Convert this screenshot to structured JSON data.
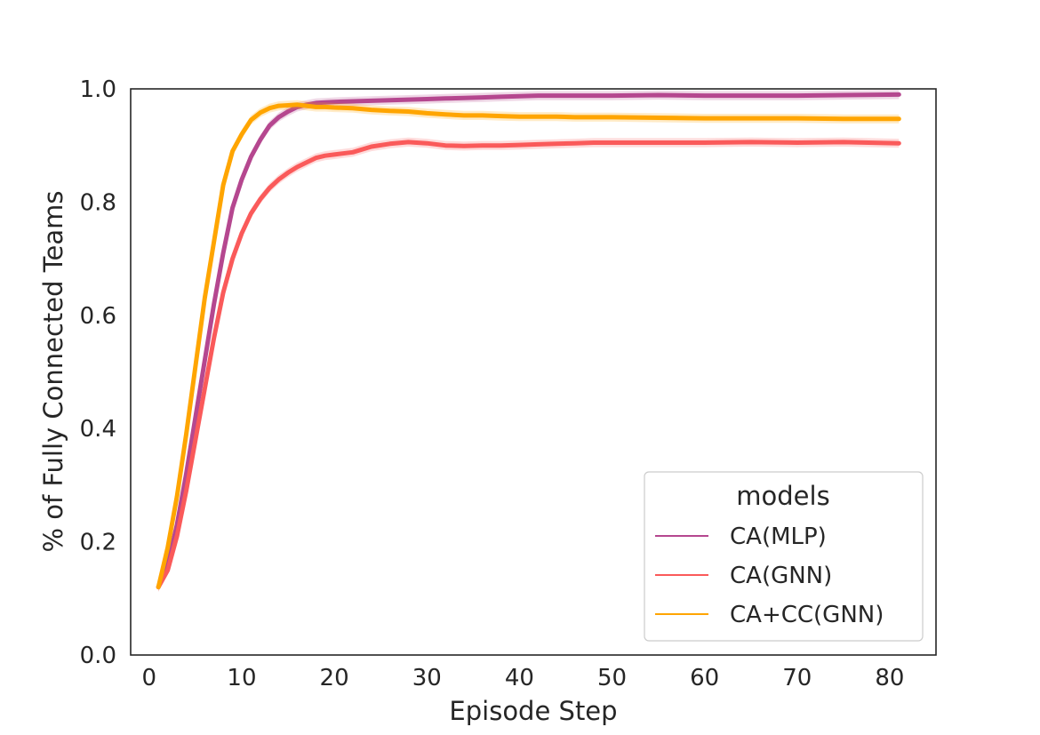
{
  "chart_data": {
    "type": "line",
    "xlabel": "Episode Step",
    "ylabel": "% of Fully Connected Teams",
    "xlim": [
      -2,
      85
    ],
    "ylim": [
      0.0,
      1.0
    ],
    "xticks": [
      0,
      10,
      20,
      30,
      40,
      50,
      60,
      70,
      80
    ],
    "xtick_labels": [
      "0",
      "10",
      "20",
      "30",
      "40",
      "50",
      "60",
      "70",
      "80"
    ],
    "yticks": [
      0.0,
      0.2,
      0.4,
      0.6,
      0.8,
      1.0
    ],
    "ytick_labels": [
      "0.0",
      "0.2",
      "0.4",
      "0.6",
      "0.8",
      "1.0"
    ],
    "grid": false,
    "legend": {
      "title": "models",
      "position": "lower right"
    },
    "series": [
      {
        "name": "CA(MLP)",
        "color": "#b5478f",
        "x": [
          1,
          2,
          3,
          4,
          5,
          6,
          7,
          8,
          9,
          10,
          11,
          12,
          13,
          14,
          15,
          16,
          17,
          18,
          19,
          20,
          22,
          24,
          26,
          28,
          30,
          32,
          34,
          36,
          38,
          40,
          42,
          44,
          46,
          48,
          50,
          55,
          60,
          65,
          70,
          75,
          81
        ],
        "y": [
          0.12,
          0.16,
          0.23,
          0.32,
          0.42,
          0.52,
          0.62,
          0.71,
          0.79,
          0.84,
          0.88,
          0.91,
          0.935,
          0.95,
          0.96,
          0.968,
          0.972,
          0.975,
          0.976,
          0.977,
          0.978,
          0.979,
          0.98,
          0.981,
          0.982,
          0.983,
          0.984,
          0.985,
          0.986,
          0.987,
          0.988,
          0.988,
          0.988,
          0.988,
          0.988,
          0.989,
          0.988,
          0.988,
          0.988,
          0.989,
          0.99
        ]
      },
      {
        "name": "CA(GNN)",
        "color": "#fa5a5a",
        "x": [
          1,
          2,
          3,
          4,
          5,
          6,
          7,
          8,
          9,
          10,
          11,
          12,
          13,
          14,
          15,
          16,
          17,
          18,
          19,
          20,
          22,
          24,
          26,
          28,
          30,
          32,
          34,
          36,
          38,
          40,
          42,
          44,
          46,
          48,
          50,
          55,
          60,
          65,
          70,
          75,
          81
        ],
        "y": [
          0.12,
          0.15,
          0.21,
          0.29,
          0.38,
          0.47,
          0.56,
          0.64,
          0.7,
          0.745,
          0.78,
          0.805,
          0.825,
          0.84,
          0.852,
          0.862,
          0.87,
          0.878,
          0.882,
          0.884,
          0.888,
          0.898,
          0.903,
          0.906,
          0.904,
          0.9,
          0.899,
          0.9,
          0.9,
          0.901,
          0.902,
          0.903,
          0.904,
          0.905,
          0.905,
          0.905,
          0.905,
          0.906,
          0.905,
          0.906,
          0.904
        ]
      },
      {
        "name": "CA+CC(GNN)",
        "color": "#ffa500",
        "x": [
          1,
          2,
          3,
          4,
          5,
          6,
          7,
          8,
          9,
          10,
          11,
          12,
          13,
          14,
          15,
          16,
          17,
          18,
          19,
          20,
          22,
          24,
          26,
          28,
          30,
          32,
          34,
          36,
          38,
          40,
          42,
          44,
          46,
          48,
          50,
          55,
          60,
          65,
          70,
          75,
          81
        ],
        "y": [
          0.12,
          0.19,
          0.28,
          0.39,
          0.51,
          0.63,
          0.73,
          0.83,
          0.89,
          0.92,
          0.945,
          0.958,
          0.966,
          0.97,
          0.971,
          0.972,
          0.97,
          0.968,
          0.968,
          0.967,
          0.966,
          0.963,
          0.961,
          0.96,
          0.957,
          0.955,
          0.953,
          0.953,
          0.952,
          0.951,
          0.951,
          0.951,
          0.95,
          0.95,
          0.95,
          0.949,
          0.948,
          0.948,
          0.948,
          0.947,
          0.947
        ]
      }
    ]
  }
}
